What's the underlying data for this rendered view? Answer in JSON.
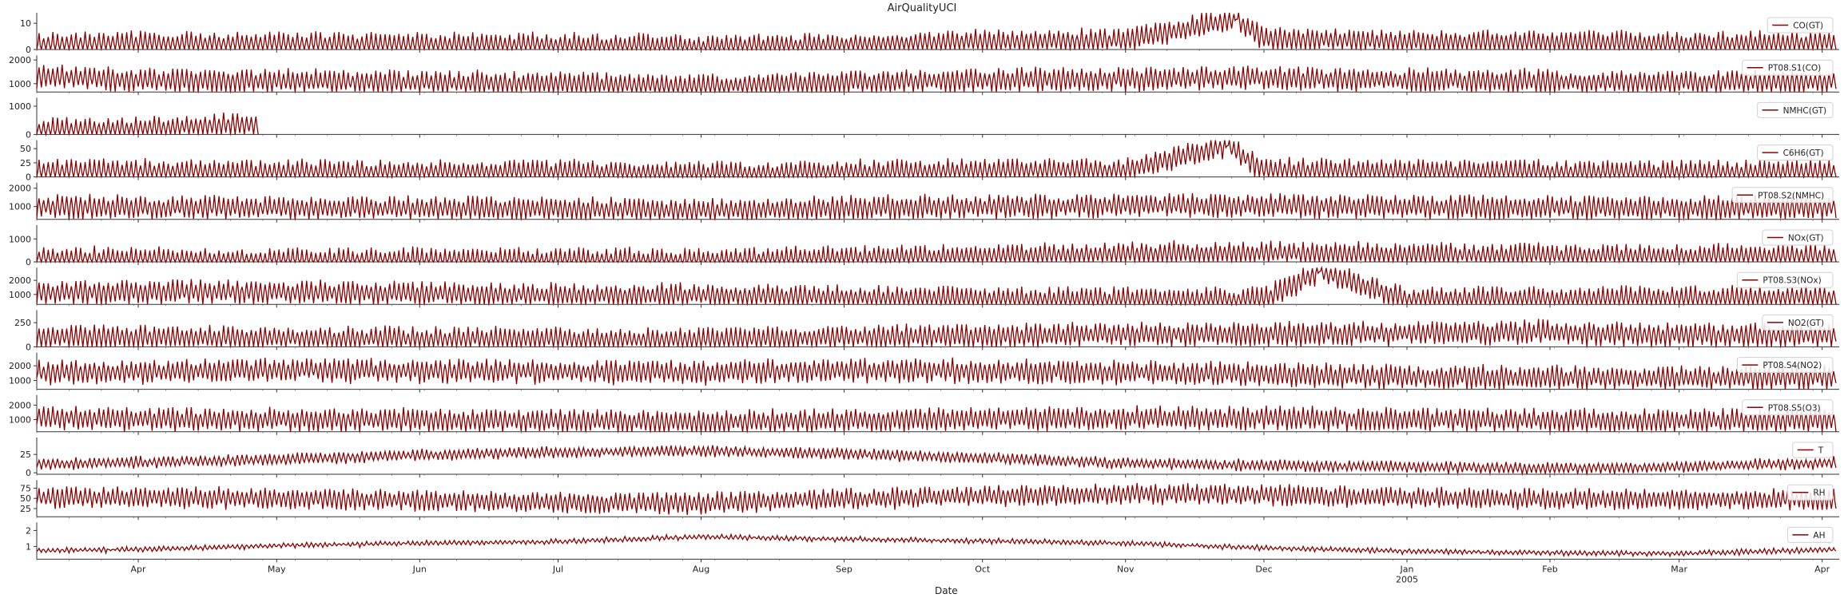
{
  "chart_data": {
    "type": "line",
    "title": "AirQualityUCI",
    "xlabel": "Date",
    "x_range": [
      "2004-03-10",
      "2005-04-04"
    ],
    "x_ticks": [
      {
        "label": "Apr",
        "date": "2004-04-01"
      },
      {
        "label": "May",
        "date": "2004-05-01"
      },
      {
        "label": "Jun",
        "date": "2004-06-01"
      },
      {
        "label": "Jul",
        "date": "2004-07-01"
      },
      {
        "label": "Aug",
        "date": "2004-08-01"
      },
      {
        "label": "Sep",
        "date": "2004-09-01"
      },
      {
        "label": "Oct",
        "date": "2004-10-01"
      },
      {
        "label": "Nov",
        "date": "2004-11-01"
      },
      {
        "label": "Dec",
        "date": "2004-12-01"
      },
      {
        "label": "Jan",
        "date": "2005-01-01",
        "sublabel": "2005"
      },
      {
        "label": "Feb",
        "date": "2005-02-01"
      },
      {
        "label": "Mar",
        "date": "2005-03-01"
      },
      {
        "label": "Apr",
        "date": "2005-04-01"
      }
    ],
    "line_color": "#8b0000",
    "legend_position": "right",
    "series": [
      {
        "name": "CO(GT)",
        "ylim": [
          0,
          14
        ],
        "yticks": [
          0,
          10
        ],
        "points": [
          [
            "2004-03-10",
            2.0
          ],
          [
            "2004-04-01",
            2.5
          ],
          [
            "2004-05-01",
            2.2
          ],
          [
            "2004-06-01",
            2.0
          ],
          [
            "2004-07-01",
            1.8
          ],
          [
            "2004-08-01",
            1.2
          ],
          [
            "2004-09-01",
            2.0
          ],
          [
            "2004-10-01",
            3.0
          ],
          [
            "2004-11-01",
            3.5
          ],
          [
            "2004-11-25",
            11.5
          ],
          [
            "2004-12-01",
            4.0
          ],
          [
            "2005-01-01",
            3.0
          ],
          [
            "2005-02-01",
            2.8
          ],
          [
            "2005-03-01",
            2.2
          ],
          [
            "2005-04-04",
            2.5
          ]
        ]
      },
      {
        "name": "PT08.S1(CO)",
        "ylim": [
          650,
          2200
        ],
        "yticks": [
          1000,
          2000
        ],
        "points": [
          [
            "2004-03-10",
            1300
          ],
          [
            "2004-04-01",
            1150
          ],
          [
            "2004-05-01",
            1100
          ],
          [
            "2004-06-01",
            1050
          ],
          [
            "2004-07-01",
            1000
          ],
          [
            "2004-08-01",
            880
          ],
          [
            "2004-09-01",
            1050
          ],
          [
            "2004-10-01",
            1150
          ],
          [
            "2004-11-01",
            1200
          ],
          [
            "2004-12-01",
            1250
          ],
          [
            "2005-01-01",
            1150
          ],
          [
            "2005-02-01",
            1100
          ],
          [
            "2005-03-01",
            1050
          ],
          [
            "2005-04-04",
            1100
          ]
        ]
      },
      {
        "name": "NMHC(GT)",
        "ylim": [
          0,
          1300
        ],
        "yticks": [
          0,
          1000
        ],
        "x_end": "2004-04-27",
        "points": [
          [
            "2004-03-10",
            150
          ],
          [
            "2004-03-25",
            200
          ],
          [
            "2004-04-10",
            250
          ],
          [
            "2004-04-20",
            350
          ],
          [
            "2004-04-27",
            300
          ]
        ]
      },
      {
        "name": "C6H6(GT)",
        "ylim": [
          0,
          65
        ],
        "yticks": [
          0,
          25,
          50
        ],
        "points": [
          [
            "2004-03-10",
            10
          ],
          [
            "2004-04-01",
            10
          ],
          [
            "2004-05-01",
            9
          ],
          [
            "2004-06-01",
            9
          ],
          [
            "2004-07-01",
            9
          ],
          [
            "2004-08-01",
            6
          ],
          [
            "2004-09-01",
            9
          ],
          [
            "2004-10-01",
            11
          ],
          [
            "2004-11-01",
            12
          ],
          [
            "2004-11-23",
            55
          ],
          [
            "2004-12-01",
            12
          ],
          [
            "2005-01-01",
            10
          ],
          [
            "2005-02-01",
            9
          ],
          [
            "2005-03-01",
            8
          ],
          [
            "2005-04-04",
            9
          ]
        ]
      },
      {
        "name": "PT08.S2(NMHC)",
        "ylim": [
          300,
          2300
        ],
        "yticks": [
          1000,
          2000
        ],
        "points": [
          [
            "2004-03-10",
            1000
          ],
          [
            "2004-04-01",
            950
          ],
          [
            "2004-05-01",
            920
          ],
          [
            "2004-06-01",
            900
          ],
          [
            "2004-07-01",
            880
          ],
          [
            "2004-08-01",
            780
          ],
          [
            "2004-09-01",
            930
          ],
          [
            "2004-10-01",
            1000
          ],
          [
            "2004-11-01",
            1050
          ],
          [
            "2004-12-01",
            1050
          ],
          [
            "2005-01-01",
            980
          ],
          [
            "2005-02-01",
            950
          ],
          [
            "2005-03-01",
            900
          ],
          [
            "2005-04-04",
            950
          ]
        ]
      },
      {
        "name": "NOx(GT)",
        "ylim": [
          0,
          1600
        ],
        "yticks": [
          0,
          1000
        ],
        "points": [
          [
            "2004-03-10",
            160
          ],
          [
            "2004-04-01",
            150
          ],
          [
            "2004-05-01",
            110
          ],
          [
            "2004-06-01",
            100
          ],
          [
            "2004-07-01",
            90
          ],
          [
            "2004-08-01",
            80
          ],
          [
            "2004-09-01",
            180
          ],
          [
            "2004-10-01",
            250
          ],
          [
            "2004-11-01",
            350
          ],
          [
            "2004-12-01",
            380
          ],
          [
            "2005-01-01",
            300
          ],
          [
            "2005-02-01",
            280
          ],
          [
            "2005-03-01",
            250
          ],
          [
            "2005-04-04",
            250
          ]
        ]
      },
      {
        "name": "PT08.S3(NOx)",
        "ylim": [
          300,
          2900
        ],
        "yticks": [
          1000,
          2000
        ],
        "points": [
          [
            "2004-03-10",
            1100
          ],
          [
            "2004-04-01",
            1200
          ],
          [
            "2004-05-01",
            1150
          ],
          [
            "2004-06-01",
            1050
          ],
          [
            "2004-07-01",
            950
          ],
          [
            "2004-08-01",
            950
          ],
          [
            "2004-09-01",
            800
          ],
          [
            "2004-10-01",
            700
          ],
          [
            "2004-11-01",
            650
          ],
          [
            "2004-12-01",
            650
          ],
          [
            "2004-12-13",
            2600
          ],
          [
            "2005-01-01",
            700
          ],
          [
            "2005-02-01",
            700
          ],
          [
            "2005-03-01",
            750
          ],
          [
            "2005-04-04",
            800
          ]
        ]
      },
      {
        "name": "NO2(GT)",
        "ylim": [
          0,
          380
        ],
        "yticks": [
          0,
          250
        ],
        "points": [
          [
            "2004-03-10",
            100
          ],
          [
            "2004-04-01",
            100
          ],
          [
            "2004-05-01",
            90
          ],
          [
            "2004-06-01",
            85
          ],
          [
            "2004-07-01",
            80
          ],
          [
            "2004-08-01",
            70
          ],
          [
            "2004-09-01",
            100
          ],
          [
            "2004-10-01",
            110
          ],
          [
            "2004-11-01",
            130
          ],
          [
            "2004-12-01",
            130
          ],
          [
            "2005-01-01",
            140
          ],
          [
            "2005-02-01",
            150
          ],
          [
            "2005-03-01",
            120
          ],
          [
            "2005-04-04",
            120
          ]
        ]
      },
      {
        "name": "PT08.S4(NO2)",
        "ylim": [
          400,
          2900
        ],
        "yticks": [
          1000,
          2000
        ],
        "points": [
          [
            "2004-03-10",
            1550
          ],
          [
            "2004-04-01",
            1600
          ],
          [
            "2004-05-01",
            1700
          ],
          [
            "2004-06-01",
            1650
          ],
          [
            "2004-07-01",
            1600
          ],
          [
            "2004-08-01",
            1550
          ],
          [
            "2004-09-01",
            1700
          ],
          [
            "2004-10-01",
            1650
          ],
          [
            "2004-11-01",
            1550
          ],
          [
            "2004-12-01",
            1400
          ],
          [
            "2005-01-01",
            1250
          ],
          [
            "2005-02-01",
            1200
          ],
          [
            "2005-03-01",
            1150
          ],
          [
            "2005-04-04",
            1250
          ]
        ]
      },
      {
        "name": "PT08.S5(O3)",
        "ylim": [
          150,
          2700
        ],
        "yticks": [
          1000,
          2000
        ],
        "points": [
          [
            "2004-03-10",
            1100
          ],
          [
            "2004-04-01",
            1050
          ],
          [
            "2004-05-01",
            1000
          ],
          [
            "2004-06-01",
            950
          ],
          [
            "2004-07-01",
            900
          ],
          [
            "2004-08-01",
            800
          ],
          [
            "2004-09-01",
            950
          ],
          [
            "2004-10-01",
            1050
          ],
          [
            "2004-11-01",
            1100
          ],
          [
            "2004-12-01",
            1100
          ],
          [
            "2005-01-01",
            1000
          ],
          [
            "2005-02-01",
            950
          ],
          [
            "2005-03-01",
            900
          ],
          [
            "2005-04-04",
            950
          ]
        ]
      },
      {
        "name": "T",
        "ylim": [
          -2,
          48
        ],
        "yticks": [
          0,
          25
        ],
        "points": [
          [
            "2004-03-10",
            12
          ],
          [
            "2004-04-01",
            14
          ],
          [
            "2004-05-01",
            18
          ],
          [
            "2004-06-01",
            24
          ],
          [
            "2004-07-01",
            28
          ],
          [
            "2004-08-01",
            30
          ],
          [
            "2004-09-01",
            26
          ],
          [
            "2004-10-01",
            20
          ],
          [
            "2004-11-01",
            13
          ],
          [
            "2004-12-01",
            10
          ],
          [
            "2005-01-01",
            8
          ],
          [
            "2005-02-01",
            6
          ],
          [
            "2005-03-01",
            8
          ],
          [
            "2005-04-04",
            14
          ]
        ]
      },
      {
        "name": "RH",
        "ylim": [
          5,
          95
        ],
        "yticks": [
          25,
          50,
          75
        ],
        "points": [
          [
            "2004-03-10",
            50
          ],
          [
            "2004-04-01",
            52
          ],
          [
            "2004-05-01",
            50
          ],
          [
            "2004-06-01",
            45
          ],
          [
            "2004-07-01",
            40
          ],
          [
            "2004-08-01",
            38
          ],
          [
            "2004-09-01",
            48
          ],
          [
            "2004-10-01",
            55
          ],
          [
            "2004-11-01",
            62
          ],
          [
            "2004-12-01",
            58
          ],
          [
            "2005-01-01",
            52
          ],
          [
            "2005-02-01",
            48
          ],
          [
            "2005-03-01",
            50
          ],
          [
            "2005-04-04",
            45
          ]
        ]
      },
      {
        "name": "AH",
        "ylim": [
          0.2,
          2.5
        ],
        "yticks": [
          1,
          2
        ],
        "points": [
          [
            "2004-03-10",
            0.75
          ],
          [
            "2004-04-01",
            0.8
          ],
          [
            "2004-05-01",
            1.05
          ],
          [
            "2004-06-01",
            1.2
          ],
          [
            "2004-07-01",
            1.3
          ],
          [
            "2004-08-01",
            1.6
          ],
          [
            "2004-09-01",
            1.45
          ],
          [
            "2004-10-01",
            1.35
          ],
          [
            "2004-11-01",
            1.2
          ],
          [
            "2004-12-01",
            0.9
          ],
          [
            "2005-01-01",
            0.7
          ],
          [
            "2005-02-01",
            0.6
          ],
          [
            "2005-03-01",
            0.55
          ],
          [
            "2005-04-04",
            0.8
          ]
        ]
      }
    ]
  }
}
